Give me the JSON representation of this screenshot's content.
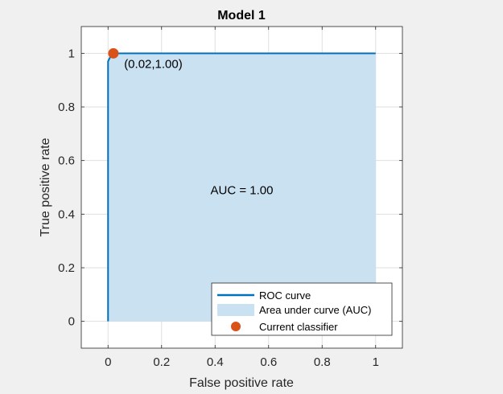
{
  "chart_data": {
    "type": "line",
    "title": "Model 1",
    "xlabel": "False positive rate",
    "ylabel": "True positive rate",
    "xlim": [
      -0.1,
      1.1
    ],
    "ylim": [
      -0.1,
      1.1
    ],
    "xticks": [
      0,
      0.2,
      0.4,
      0.6,
      0.8,
      1
    ],
    "yticks": [
      0,
      0.2,
      0.4,
      0.6,
      0.8,
      1
    ],
    "xtick_labels": [
      "0",
      "0.2",
      "0.4",
      "0.6",
      "0.8",
      "1"
    ],
    "ytick_labels": [
      "0",
      "0.2",
      "0.4",
      "0.6",
      "0.8",
      "1"
    ],
    "grid": true,
    "series": [
      {
        "name": "ROC curve",
        "x": [
          0,
          0,
          0.005,
          0.01,
          0.02,
          0.03,
          1
        ],
        "y": [
          0,
          0.97,
          0.98,
          0.99,
          1.0,
          1.0,
          1.0
        ],
        "color": "#0072BD"
      },
      {
        "name": "Area under curve (AUC)",
        "kind": "area",
        "color": "#C9E1F1"
      },
      {
        "name": "Current classifier",
        "kind": "point",
        "x": 0.02,
        "y": 1.0,
        "color": "#D95319"
      }
    ],
    "annotations": [
      {
        "text": "(0.02,1.00)",
        "x": 0.06,
        "y": 0.96
      },
      {
        "text": "AUC = 1.00",
        "x": 0.5,
        "y": 0.49
      }
    ],
    "legend": {
      "position": "bottom-right",
      "entries": [
        "ROC curve",
        "Area under curve (AUC)",
        "Current classifier"
      ]
    }
  }
}
